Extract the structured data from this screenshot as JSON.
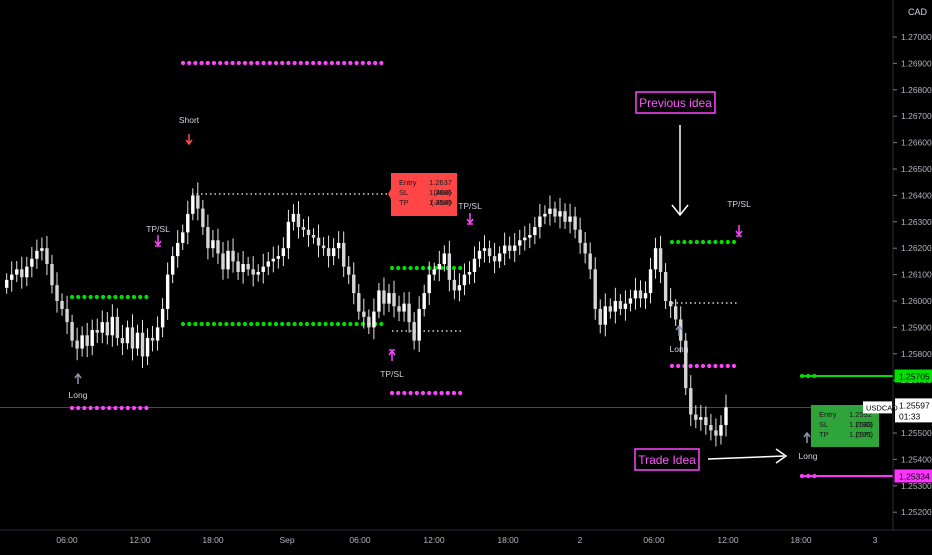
{
  "chart_data": {
    "type": "candlestick",
    "symbol": "USDCAD",
    "currency": "CAD",
    "y_ticks": [
      "1.27000",
      "1.26900",
      "1.26800",
      "1.26700",
      "1.26600",
      "1.26500",
      "1.26400",
      "1.26300",
      "1.26200",
      "1.26100",
      "1.26000",
      "1.25900",
      "1.25800",
      "1.25700",
      "1.25600",
      "1.25500",
      "1.25400",
      "1.25300",
      "1.25200"
    ],
    "ylim": [
      1.2515,
      1.2706
    ],
    "x_ticks": [
      "06:00",
      "12:00",
      "18:00",
      "Sep",
      "06:00",
      "12:00",
      "18:00",
      "2",
      "06:00",
      "12:00",
      "18:00",
      "3"
    ],
    "last_price": "1.25597",
    "countdown": "01:33",
    "price_tags": [
      {
        "value": "1.25705",
        "color": "#00e000"
      },
      {
        "value": "1.25334",
        "color": "#ff33ff"
      }
    ],
    "closes": [
      1.2608,
      1.261,
      1.2612,
      1.2609,
      1.2613,
      1.2616,
      1.2619,
      1.262,
      1.2614,
      1.2606,
      1.26,
      1.2597,
      1.2592,
      1.2585,
      1.2582,
      1.2587,
      1.2583,
      1.2589,
      1.2588,
      1.2592,
      1.2587,
      1.2594,
      1.2586,
      1.2584,
      1.259,
      1.2582,
      1.2588,
      1.2579,
      1.2586,
      1.2585,
      1.259,
      1.2597,
      1.261,
      1.2617,
      1.2622,
      1.2626,
      1.2633,
      1.264,
      1.2635,
      1.2628,
      1.262,
      1.2623,
      1.2618,
      1.2612,
      1.2619,
      1.2615,
      1.2611,
      1.2614,
      1.2612,
      1.261,
      1.2611,
      1.2613,
      1.2615,
      1.2616,
      1.2617,
      1.262,
      1.263,
      1.2633,
      1.2628,
      1.2627,
      1.2625,
      1.2624,
      1.2621,
      1.262,
      1.2617,
      1.262,
      1.2622,
      1.2613,
      1.261,
      1.2603,
      1.2596,
      1.2594,
      1.259,
      1.2596,
      1.2604,
      1.2599,
      1.2603,
      1.2598,
      1.2596,
      1.2599,
      1.2592,
      1.2585,
      1.2597,
      1.2603,
      1.261,
      1.2612,
      1.2614,
      1.2618,
      1.2608,
      1.2604,
      1.2606,
      1.261,
      1.2611,
      1.2616,
      1.2619,
      1.262,
      1.2617,
      1.2615,
      1.2618,
      1.2621,
      1.2619,
      1.2621,
      1.2623,
      1.2624,
      1.2625,
      1.2628,
      1.2632,
      1.2633,
      1.2635,
      1.2632,
      1.2634,
      1.263,
      1.2632,
      1.2627,
      1.2622,
      1.2618,
      1.2612,
      1.2597,
      1.2591,
      1.2598,
      1.2596,
      1.26,
      1.2597,
      1.2599,
      1.2601,
      1.2604,
      1.2601,
      1.2603,
      1.2612,
      1.262,
      1.2611,
      1.26,
      1.2598,
      1.2593,
      1.2585,
      1.2567,
      1.2557,
      1.2555,
      1.2556,
      1.2553,
      1.2551,
      1.2549,
      1.2553,
      1.25597
    ],
    "annotations": {
      "short_label": "Short",
      "long_labels": [
        "Long",
        "Long",
        "Long"
      ],
      "tpsl_labels": [
        "TP/SL",
        "TP/SL",
        "TP/SL",
        "TP/SL"
      ],
      "boxes": [
        {
          "lines": [
            [
              "Entry",
              "1.2637",
              ""
            ],
            [
              "SL",
              "1.2686",
              "(484)"
            ],
            [
              "TP",
              "1.2589",
              "(-484)"
            ]
          ],
          "color": "#ff4545"
        },
        {
          "lines": [
            [
              "Entry",
              "1.2552",
              ""
            ],
            [
              "SL",
              "1.2533",
              "(186)"
            ],
            [
              "TP",
              "1.2571",
              "(186)"
            ]
          ],
          "color": "#2fa43a"
        }
      ],
      "callouts": [
        "Previous idea",
        "Trade Idea"
      ]
    }
  }
}
